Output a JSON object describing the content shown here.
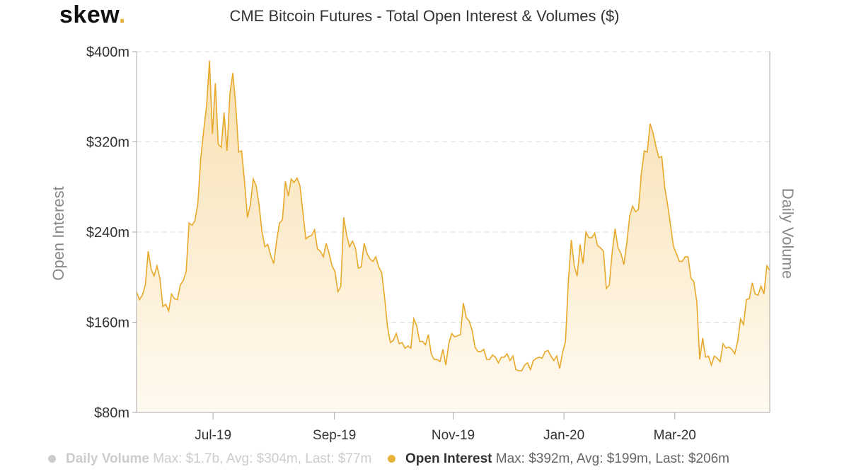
{
  "logo": {
    "word": "skew",
    "dot": "."
  },
  "chart_data": {
    "type": "area",
    "title": "CME Bitcoin Futures - Total Open Interest & Volumes ($)",
    "ylabel": "Open Interest",
    "y2label": "Daily Volume",
    "ylim": [
      80,
      400
    ],
    "yticks": [
      80,
      160,
      240,
      320,
      400
    ],
    "ytick_labels": [
      "$80m",
      "$160m",
      "$240m",
      "$320m",
      "$400m"
    ],
    "xlim": [
      0,
      240
    ],
    "xticks": [
      29,
      75,
      120,
      162,
      204
    ],
    "xtick_labels": [
      "Jul-19",
      "Sep-19",
      "Nov-19",
      "Jan-20",
      "Mar-20"
    ],
    "grid": true,
    "colors": {
      "line": "#e8a92a",
      "fill_top": "#f8dfb0",
      "fill_bottom": "#fffaf0",
      "grid": "#dddddd",
      "axis": "#aaaaaa"
    },
    "series": [
      {
        "name": "Open Interest",
        "unit": "$m",
        "values": [
          187,
          180,
          184,
          193,
          223,
          207,
          201,
          210,
          199,
          174,
          176,
          170,
          185,
          181,
          180,
          193,
          197,
          205,
          248,
          246,
          250,
          265,
          305,
          330,
          352,
          392,
          327,
          372,
          318,
          315,
          346,
          312,
          363,
          381,
          352,
          311,
          312,
          285,
          253,
          264,
          287,
          281,
          264,
          240,
          227,
          229,
          219,
          212,
          232,
          248,
          251,
          285,
          272,
          287,
          284,
          288,
          281,
          258,
          234,
          236,
          237,
          242,
          225,
          223,
          218,
          230,
          221,
          210,
          205,
          187,
          192,
          253,
          237,
          227,
          232,
          226,
          208,
          209,
          230,
          221,
          216,
          214,
          218,
          209,
          204,
          182,
          156,
          142,
          144,
          150,
          141,
          142,
          137,
          139,
          137,
          163,
          157,
          143,
          143,
          140,
          149,
          132,
          127,
          127,
          125,
          136,
          122,
          141,
          150,
          147,
          148,
          149,
          177,
          164,
          161,
          153,
          138,
          134,
          134,
          136,
          127,
          127,
          131,
          129,
          124,
          129,
          129,
          132,
          126,
          130,
          118,
          117,
          117,
          122,
          124,
          118,
          126,
          128,
          129,
          128,
          134,
          135,
          130,
          126,
          130,
          119,
          133,
          143,
          197,
          233,
          210,
          201,
          229,
          212,
          240,
          235,
          235,
          239,
          228,
          226,
          223,
          190,
          193,
          222,
          243,
          226,
          221,
          211,
          230,
          254,
          263,
          258,
          260,
          292,
          312,
          311,
          336,
          328,
          316,
          306,
          307,
          280,
          264,
          246,
          227,
          221,
          214,
          214,
          218,
          218,
          199,
          196,
          178,
          127,
          146,
          129,
          130,
          122,
          130,
          128,
          125,
          141,
          137,
          138,
          136,
          132,
          143,
          163,
          158,
          180,
          181,
          195,
          185,
          184,
          192,
          185,
          210,
          206
        ]
      }
    ],
    "legend": [
      {
        "name": "Daily Volume",
        "stats": "Max: $1.7b, Avg: $304m, Last: $77m",
        "state": "hidden"
      },
      {
        "name": "Open Interest",
        "stats": "Max: $392m, Avg: $199m, Last: $206m",
        "state": "visible"
      }
    ]
  }
}
